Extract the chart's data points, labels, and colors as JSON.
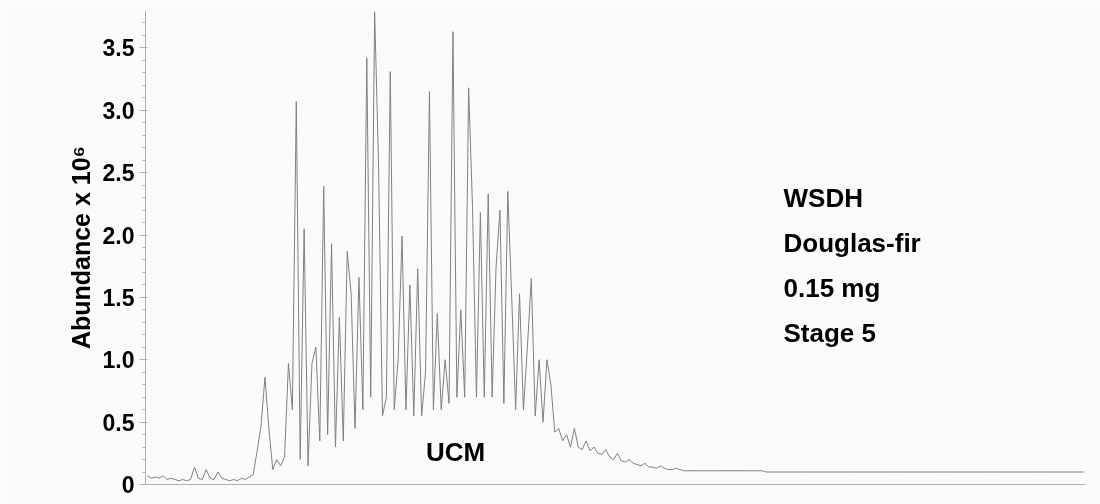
{
  "chart_data": {
    "type": "line",
    "ylabel": "Abundance x 10⁶",
    "ylim": [
      0,
      3.8
    ],
    "yticks": [
      0,
      0.5,
      {
        "value": 1.0,
        "label": "1.0"
      },
      1.5,
      {
        "value": 2.0,
        "label": "2.0"
      },
      2.5,
      {
        "value": 3.0,
        "label": "3.0"
      },
      3.5,
      {
        "value": 0.1,
        "label": null
      },
      {
        "value": 0.2,
        "label": null
      },
      {
        "value": 0.3,
        "label": null
      },
      {
        "value": 0.4,
        "label": null
      },
      {
        "value": 0.6,
        "label": null
      },
      {
        "value": 0.7,
        "label": null
      },
      {
        "value": 0.8,
        "label": null
      },
      {
        "value": 0.9,
        "label": null
      },
      {
        "value": 1.1,
        "label": null
      },
      {
        "value": 1.2,
        "label": null
      },
      {
        "value": 1.3,
        "label": null
      },
      {
        "value": 1.4,
        "label": null
      },
      {
        "value": 1.6,
        "label": null
      },
      {
        "value": 1.7,
        "label": null
      },
      {
        "value": 1.8,
        "label": null
      },
      {
        "value": 1.9,
        "label": null
      },
      {
        "value": 2.1,
        "label": null
      },
      {
        "value": 2.2,
        "label": null
      },
      {
        "value": 2.3,
        "label": null
      },
      {
        "value": 2.4,
        "label": null
      },
      {
        "value": 2.6,
        "label": null
      },
      {
        "value": 2.7,
        "label": null
      },
      {
        "value": 2.8,
        "label": null
      },
      {
        "value": 2.9,
        "label": null
      },
      {
        "value": 3.1,
        "label": null
      },
      {
        "value": 3.2,
        "label": null
      },
      {
        "value": 3.3,
        "label": null
      },
      {
        "value": 3.4,
        "label": null
      },
      {
        "value": 3.6,
        "label": null
      },
      {
        "value": 3.7,
        "label": null
      }
    ],
    "annotations": [
      "UCM",
      "WSDH",
      "Douglas-fir",
      "0.15 mg",
      "Stage 5"
    ],
    "grid": false,
    "marker": "none",
    "line_style": "solid",
    "categories": [
      null,
      null,
      null,
      null,
      null,
      null,
      null,
      null,
      null,
      null,
      null,
      null,
      null,
      null,
      null,
      null,
      null,
      null,
      null,
      null,
      null,
      null,
      null,
      null,
      null,
      null,
      null,
      null,
      null,
      null,
      null,
      null,
      null,
      null,
      null,
      null,
      null,
      null,
      null,
      null,
      null,
      null,
      null,
      null,
      null,
      null,
      null,
      null,
      null,
      null,
      null,
      null,
      null,
      null,
      null,
      null,
      null,
      null,
      null,
      null,
      null,
      null,
      null,
      null,
      null,
      null,
      null,
      null,
      null,
      null,
      null,
      null,
      null,
      null,
      null,
      null,
      null,
      null,
      null,
      null,
      null,
      null,
      null,
      null,
      null,
      null,
      null,
      null,
      null,
      null,
      null,
      null,
      null,
      null,
      null,
      null,
      null,
      null,
      null,
      null,
      null,
      null,
      null,
      null,
      null,
      null,
      null,
      null,
      null,
      null,
      null,
      null,
      null,
      null,
      null,
      null,
      null,
      null,
      null,
      null,
      null,
      null,
      null,
      null,
      null,
      null,
      null,
      null,
      null,
      null,
      null,
      null,
      null,
      null,
      null,
      null,
      null,
      null,
      null,
      null,
      null,
      null,
      null,
      null,
      null,
      null,
      null,
      null,
      null,
      null,
      null,
      null,
      null,
      null,
      null,
      null,
      null,
      null,
      null,
      null,
      null,
      null,
      null,
      null,
      null,
      null,
      null,
      null,
      null,
      null,
      null,
      null,
      null,
      null,
      null,
      null,
      null,
      null,
      null,
      null,
      null,
      null,
      null,
      null,
      null,
      null,
      null,
      null,
      null,
      null,
      null,
      null,
      null,
      null,
      null,
      null,
      null,
      null,
      null,
      null,
      null,
      null,
      null,
      null,
      null,
      null,
      null,
      null,
      null,
      null,
      null,
      null,
      null,
      null,
      null,
      null,
      null,
      null,
      null,
      null,
      null,
      null,
      null,
      null,
      null,
      null,
      null,
      null,
      null,
      null,
      null,
      null,
      null,
      null,
      null,
      null,
      null,
      null,
      null,
      null
    ],
    "series": [
      {
        "color": "#808080",
        "values": [
          0.07,
          0.05,
          0.06,
          0.05,
          0.07,
          0.04,
          0.05,
          0.04,
          0.03,
          0.04,
          0.03,
          0.04,
          0.14,
          0.05,
          0.04,
          0.12,
          0.05,
          0.04,
          0.1,
          0.05,
          0.04,
          0.03,
          0.04,
          0.03,
          0.05,
          0.04,
          0.06,
          0.08,
          0.27,
          0.47,
          0.86,
          0.45,
          0.12,
          0.2,
          0.15,
          0.22,
          0.97,
          0.6,
          3.07,
          0.2,
          2.05,
          0.15,
          0.97,
          1.1,
          0.35,
          2.39,
          0.4,
          1.93,
          0.3,
          1.34,
          0.35,
          1.87,
          1.53,
          0.45,
          1.66,
          0.6,
          3.42,
          0.7,
          3.79,
          2.57,
          0.55,
          0.7,
          3.31,
          0.6,
          1.0,
          1.99,
          0.6,
          1.6,
          0.55,
          1.73,
          0.55,
          0.9,
          3.15,
          0.6,
          1.37,
          0.6,
          1.0,
          0.65,
          3.63,
          0.7,
          1.4,
          0.7,
          3.18,
          2.22,
          0.7,
          2.18,
          0.7,
          2.33,
          0.7,
          1.74,
          2.2,
          0.65,
          2.35,
          1.5,
          0.6,
          1.53,
          0.6,
          1.1,
          1.65,
          0.55,
          1.0,
          0.5,
          1.0,
          0.8,
          0.42,
          0.45,
          0.35,
          0.4,
          0.3,
          0.45,
          0.3,
          0.28,
          0.35,
          0.27,
          0.3,
          0.25,
          0.24,
          0.28,
          0.22,
          0.2,
          0.25,
          0.19,
          0.18,
          0.2,
          0.17,
          0.16,
          0.15,
          0.17,
          0.14,
          0.14,
          0.13,
          0.15,
          0.13,
          0.12,
          0.12,
          0.13,
          0.12,
          0.11,
          0.11,
          0.11,
          0.11,
          0.11,
          0.11,
          0.11,
          0.11,
          0.11,
          0.11,
          0.11,
          0.11,
          0.11,
          0.11,
          0.11,
          0.11,
          0.11,
          0.11,
          0.11,
          0.11,
          0.11,
          0.1,
          0.1,
          0.1,
          0.1,
          0.1,
          0.1,
          0.1,
          0.1,
          0.1,
          0.1,
          0.1,
          0.1,
          0.1,
          0.1,
          0.1,
          0.1,
          0.1,
          0.1,
          0.1,
          0.1,
          0.1,
          0.1,
          0.1,
          0.1,
          0.1,
          0.1,
          0.1,
          0.1,
          0.1,
          0.1,
          0.1,
          0.1,
          0.1,
          0.1,
          0.1,
          0.1,
          0.1,
          0.1,
          0.1,
          0.1,
          0.1,
          0.1,
          0.1,
          0.1,
          0.1,
          0.1,
          0.1,
          0.1,
          0.1,
          0.1,
          0.1,
          0.1,
          0.1,
          0.1,
          0.1,
          0.1,
          0.1,
          0.1,
          0.1,
          0.1,
          0.1,
          0.1,
          0.1,
          0.1,
          0.1,
          0.1,
          0.1,
          0.1,
          0.1,
          0.1,
          0.1,
          0.1,
          0.1,
          0.1,
          0.1,
          0.1,
          0.1,
          0.1,
          0.1,
          0.1,
          0.1,
          0.1
        ]
      }
    ]
  }
}
